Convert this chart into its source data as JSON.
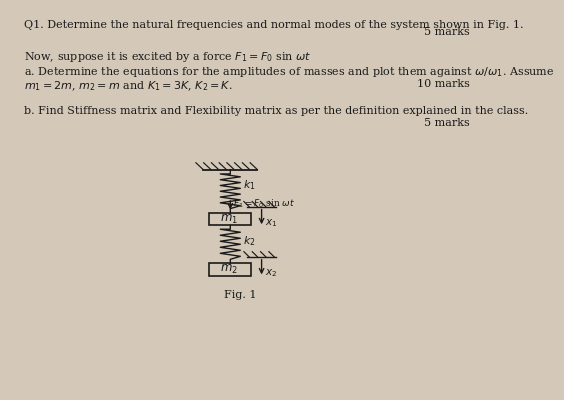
{
  "bg_color": "#d4c9b8",
  "text_color": "#1a1a1a",
  "title_line1": "Q1. Determine the natural frequencies and normal modes of the system shown in Fig. 1.",
  "marks_q1": "5 marks",
  "line2": "Now, suppose it is excited by a force $F_1= F_0$ sin $\\omega t$",
  "line3a": "a. Determine the equations for the amplitudes of masses and plot them against $\\omega/\\omega_1$. Assume",
  "line3b": "$m_1= 2m$, $m_2= m$ and $K_1= 3K$, $K_2= K$.",
  "marks_a": "10 marks",
  "line4": "b. Find Stiffness matrix and Flexibility matrix as per the definition explained in the class.",
  "marks_b": "5 marks",
  "fig_label": "Fig. 1",
  "lw": 1.0,
  "tc2": "#1a1a1a",
  "fs_text": 8.0,
  "fs_small": 7.0
}
